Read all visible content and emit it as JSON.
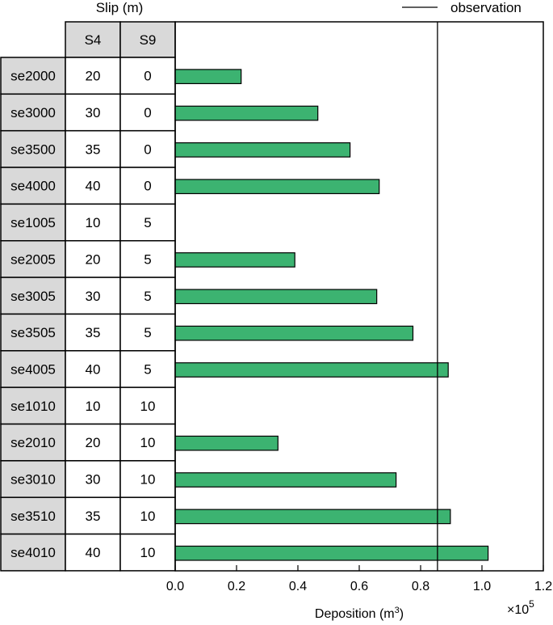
{
  "header": {
    "slip_label": "Slip (m)",
    "legend_label": "observation",
    "col_s4": "S4",
    "col_s9": "S9"
  },
  "chart_data": {
    "type": "bar",
    "orientation": "horizontal",
    "xlabel": "Deposition (m",
    "xlabel_sup": "3",
    "xlabel_close": ")",
    "multiplier_prefix": "×10",
    "multiplier_exp": "5",
    "xlim": [
      0,
      1.2
    ],
    "xticks": [
      "0.0",
      "0.2",
      "0.4",
      "0.6",
      "0.8",
      "1.0",
      "1.2"
    ],
    "observation": 0.855,
    "bar_color": "#3cb371",
    "rows": [
      {
        "name": "se2000",
        "s4": "20",
        "s9": "0",
        "value": 0.215
      },
      {
        "name": "se3000",
        "s4": "30",
        "s9": "0",
        "value": 0.465
      },
      {
        "name": "se3500",
        "s4": "35",
        "s9": "0",
        "value": 0.57
      },
      {
        "name": "se4000",
        "s4": "40",
        "s9": "0",
        "value": 0.665
      },
      {
        "name": "se1005",
        "s4": "10",
        "s9": "5",
        "value": 0
      },
      {
        "name": "se2005",
        "s4": "20",
        "s9": "5",
        "value": 0.39
      },
      {
        "name": "se3005",
        "s4": "30",
        "s9": "5",
        "value": 0.657
      },
      {
        "name": "se3505",
        "s4": "35",
        "s9": "5",
        "value": 0.775
      },
      {
        "name": "se4005",
        "s4": "40",
        "s9": "5",
        "value": 0.89
      },
      {
        "name": "se1010",
        "s4": "10",
        "s9": "10",
        "value": 0
      },
      {
        "name": "se2010",
        "s4": "20",
        "s9": "10",
        "value": 0.335
      },
      {
        "name": "se3010",
        "s4": "30",
        "s9": "10",
        "value": 0.72
      },
      {
        "name": "se3510",
        "s4": "35",
        "s9": "10",
        "value": 0.897
      },
      {
        "name": "se4010",
        "s4": "40",
        "s9": "10",
        "value": 1.02
      }
    ]
  }
}
